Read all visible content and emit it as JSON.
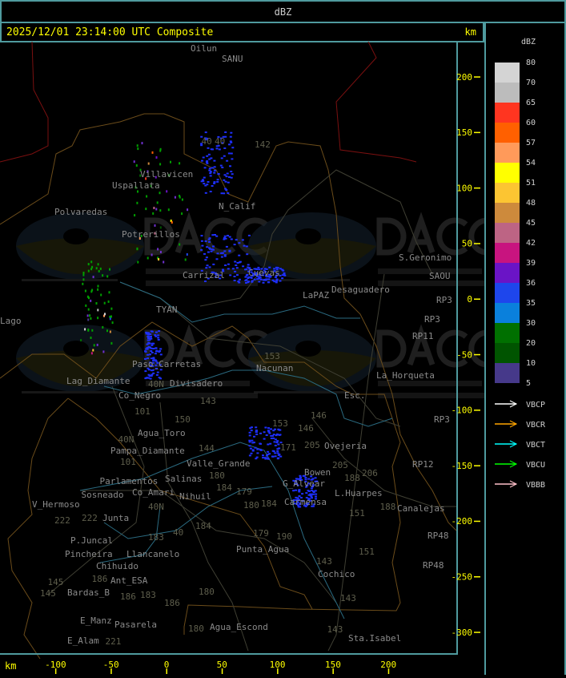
{
  "header": {
    "product": "dBZ"
  },
  "title": {
    "text": "2025/12/01 23:14:00 UTC Composite",
    "unit_top": "km",
    "unit_bottom": "km"
  },
  "axes": {
    "x_ticks": [
      "-100",
      "-50",
      "0",
      "50",
      "100",
      "150",
      "200"
    ],
    "y_ticks": [
      "200",
      "150",
      "100",
      "50",
      "0",
      "-50",
      "-100",
      "-150",
      "-200",
      "-250",
      "-300"
    ]
  },
  "legend": {
    "unit": "dBZ",
    "bins": [
      {
        "label": "80",
        "color": "#d4d4d4"
      },
      {
        "label": "70",
        "color": "#bcbcbc"
      },
      {
        "label": "65",
        "color": "#ff3520"
      },
      {
        "label": "60",
        "color": "#ff6000"
      },
      {
        "label": "57",
        "color": "#ff9a5a"
      },
      {
        "label": "54",
        "color": "#ffff00"
      },
      {
        "label": "51",
        "color": "#fcc532"
      },
      {
        "label": "48",
        "color": "#cd8a3c"
      },
      {
        "label": "45",
        "color": "#bd6484"
      },
      {
        "label": "42",
        "color": "#c8147f"
      },
      {
        "label": "39",
        "color": "#6a14c6"
      },
      {
        "label": "36",
        "color": "#1e46ec"
      },
      {
        "label": "35",
        "color": "#0a80dc"
      },
      {
        "label": "30",
        "color": "#007000"
      },
      {
        "label": "20",
        "color": "#005400"
      },
      {
        "label": "10",
        "color": "#46398a"
      },
      {
        "label": "5",
        "color": ""
      }
    ],
    "radars": [
      {
        "label": "VBCP",
        "color": "#ffffff"
      },
      {
        "label": "VBCR",
        "color": "#ffa500"
      },
      {
        "label": "VBCT",
        "color": "#00ffff"
      },
      {
        "label": "VBCU",
        "color": "#00ff00"
      },
      {
        "label": "VBBB",
        "color": "#ffc0cb"
      }
    ]
  },
  "watermark": {
    "brand": "DACC",
    "line1": "Dirección de Agricultura",
    "line2": "y Contingencias Climáticas",
    "url": "http://www.contingencias.mendoza.gov.ar"
  },
  "places": [
    "Uspallata",
    "Villavicen",
    "Polvaredas",
    "Potrerillos",
    "N_Calif",
    "Carrizal",
    "Cuevas",
    "LaPAZ",
    "Desaguadero",
    "S.Geronimo",
    "SAOU",
    "RP3",
    "RP3",
    "RP11",
    "Nacunan",
    "La_Horqueta",
    "Esc.",
    "Paso_Carretas",
    "Lag_Diamante",
    "Co_Negro",
    "Divisadero",
    "Agua_Toro",
    "Pampa_Diamante",
    "Valle_Grande",
    "Salinas",
    "Co_Amari",
    "Parlamentos",
    "Sosneado",
    "Nihuil",
    "V_Hermoso",
    "Junta",
    "P.Juncal",
    "Pincheira",
    "Llancanelo",
    "Chihuido",
    "Ant_ESA",
    "Bardas_B",
    "E_Manz",
    "E_Alam",
    "Pasarela",
    "Punta_Agua",
    "Agua_Escond",
    "Carmensa",
    "L.Huarpes",
    "Canalejas",
    "Ovejeria",
    "G_Alvear",
    "Bowen",
    "Cochico",
    "Sta.Isabel",
    "RP12",
    "RP48",
    "RP48",
    "RP3",
    "Oilun",
    "SANU",
    "Lago",
    "TYAN"
  ],
  "routes": [
    "142",
    "40",
    "153",
    "146",
    "146",
    "153",
    "143",
    "101",
    "150",
    "40N",
    "40N",
    "101",
    "144",
    "180",
    "184",
    "184",
    "179",
    "184",
    "179",
    "190",
    "183",
    "186",
    "186",
    "183",
    "180",
    "186",
    "180",
    "145",
    "145",
    "221",
    "222",
    "222",
    "188",
    "188",
    "151",
    "151",
    "143",
    "143",
    "143",
    "205",
    "205",
    "206",
    "171",
    "40",
    "40",
    "40N",
    "180"
  ]
}
